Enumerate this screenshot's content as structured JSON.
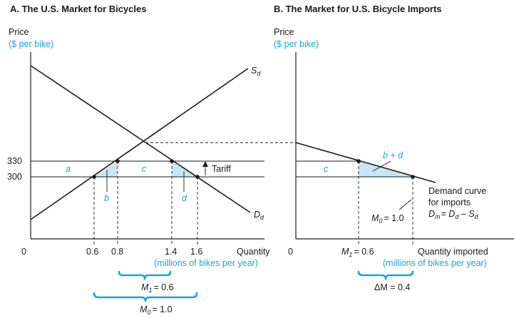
{
  "panel_a": {
    "title": "A. The U.S. Market for Bicycles",
    "ylabel": "Price",
    "yunit": "($ per bike)",
    "xlabel": "Quantity",
    "xunit": "(millions of bikes per year)",
    "supply_label": "S",
    "supply_sub": "d",
    "demand_label": "D",
    "demand_sub": "d",
    "tariff_label": "Tariff",
    "area_a": "a",
    "area_b": "b",
    "area_c": "c",
    "area_d": "d",
    "m1_label": "M",
    "m1_sub": "1",
    "m1_value": "= 0.6",
    "m0_label": "M",
    "m0_sub": "0",
    "m0_value": "= 1.0"
  },
  "panel_b": {
    "title": "B. The Market for U.S. Bicycle Imports",
    "ylabel": "Price",
    "yunit": "($ per bike)",
    "xlabel": "Quantity imported",
    "xunit": "(millions of bikes per year)",
    "area_c": "c",
    "area_bd": "b + d",
    "demand_caption_1": "Demand curve",
    "demand_caption_2": "for imports",
    "demand_eq_d": "D",
    "demand_eq_m": "m",
    "demand_eq_rest": "= D",
    "demand_eq_d_sub": "d",
    "demand_eq_minus": " – S",
    "demand_eq_s_sub": "d",
    "m0_label": "M",
    "m0_sub": "0",
    "m0_value": "= 1.0",
    "m1_label": "M",
    "m1_sub": "1",
    "m1_value": "= 0.6",
    "dm_label": "ΔM = 0.4"
  },
  "axis_ticks": {
    "y330": "330",
    "y300": "300",
    "x0a": "0",
    "x06": "0.6",
    "x08": "0.8",
    "x14": "1.4",
    "x16": "1.6",
    "x0b": "0",
    "xm1": "M",
    "xm1_sub": "1",
    "xm1_val": "= 0.6"
  },
  "chart_data": {
    "type": "line",
    "panel_a_points": [
      {
        "x": 0.6,
        "y": 300
      },
      {
        "x": 0.8,
        "y": 330
      },
      {
        "x": 1.4,
        "y": 330
      },
      {
        "x": 1.6,
        "y": 300
      }
    ],
    "panel_b_points": [
      {
        "x": 0.6,
        "y": 330
      },
      {
        "x": 1.0,
        "y": 300
      }
    ],
    "y_ticks": [
      300,
      330
    ],
    "x_ticks_a": [
      0,
      0.6,
      0.8,
      1.4,
      1.6
    ]
  }
}
